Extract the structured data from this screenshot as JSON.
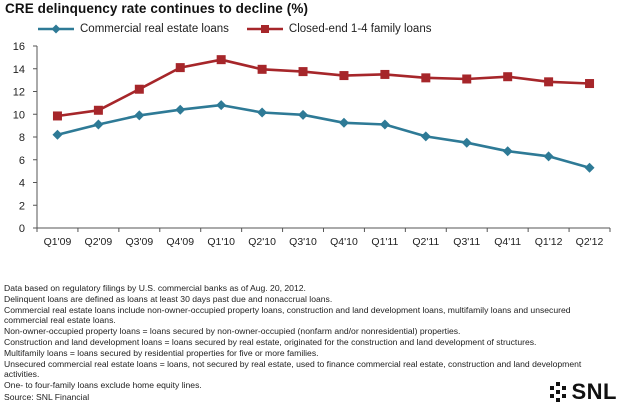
{
  "title": "CRE delinquency rate continues to decline (%)",
  "chart_data": {
    "type": "line",
    "categories": [
      "Q1'09",
      "Q2'09",
      "Q3'09",
      "Q4'09",
      "Q1'10",
      "Q2'10",
      "Q3'10",
      "Q4'10",
      "Q1'11",
      "Q2'11",
      "Q3'11",
      "Q4'11",
      "Q1'12",
      "Q2'12"
    ],
    "series": [
      {
        "name": "Commercial real estate loans",
        "color": "#2e7a96",
        "marker": "diamond",
        "values": [
          8.2,
          9.1,
          9.9,
          10.4,
          10.8,
          10.15,
          9.95,
          9.25,
          9.1,
          8.05,
          7.5,
          6.75,
          6.3,
          5.3
        ]
      },
      {
        "name": "Closed-end 1-4 family loans",
        "color": "#a6262a",
        "marker": "square",
        "values": [
          9.85,
          10.35,
          12.2,
          14.1,
          14.8,
          13.95,
          13.75,
          13.4,
          13.5,
          13.2,
          13.1,
          13.3,
          12.85,
          12.7
        ]
      }
    ],
    "ylim": [
      0,
      16
    ],
    "yticks": [
      0,
      2,
      4,
      6,
      8,
      10,
      12,
      14,
      16
    ],
    "grid": false,
    "legend": "top",
    "xlabel": "",
    "ylabel": ""
  },
  "notes": [
    "Data based on regulatory filings by U.S. commercial banks as of Aug. 20, 2012.",
    "Delinquent loans are defined as loans at least 30 days past due and nonaccrual loans.",
    "Commercial real estate loans include non-owner-occupied property loans, construction and land development loans, multifamily loans and unsecured commercial real estate loans.",
    "Non-owner-occupied property loans = loans secured by non-owner-occupied (nonfarm and/or nonresidential) properties.",
    "Construction and land development loans = loans secured by real estate, originated for the construction and land development of structures.",
    "Multifamily loans = loans secured by residential properties for five or more families.",
    "Unsecured commercial real estate loans = loans, not secured by real estate, used to finance commercial real estate, construction and land development activities.",
    "One- to four-family loans exclude home equity lines."
  ],
  "source": "Source: SNL Financial",
  "logo": {
    "text": "SNL",
    "color": "#111111"
  }
}
